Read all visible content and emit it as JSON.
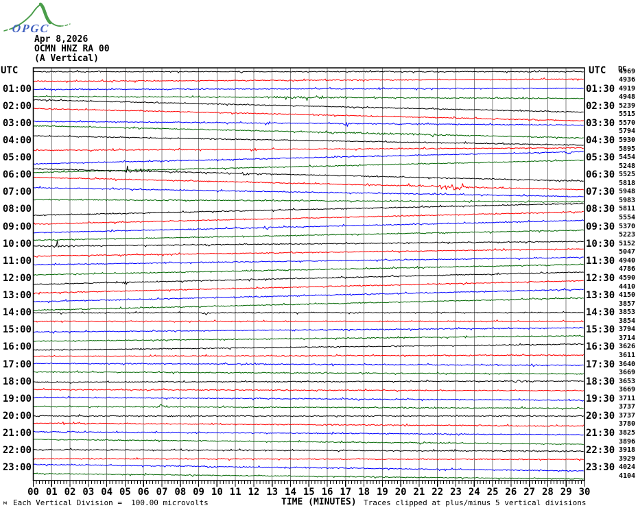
{
  "logo": {
    "text": "OPGC",
    "curve_color": "#4a9d4a",
    "text_color": "#4060c0"
  },
  "header": {
    "date": "Apr 8,2026",
    "station": "OCMN HNZ RA 00",
    "component": "(A Vertical)",
    "utc_left": "UTC",
    "utc_right": "UTC",
    "dc_header": "DC"
  },
  "footer": {
    "division_text": "Each Vertical Division =  100.00 microvolts",
    "time_axis_label": "TIME (MINUTES)",
    "clip_text": "Traces clipped at plus/minus 5 vertical divisions",
    "corner_mark": "м"
  },
  "chart_data": {
    "type": "line",
    "subtype": "helicorder-webicorder",
    "xlabel": "TIME (MINUTES)",
    "x_range": [
      0,
      30
    ],
    "minutes_per_line": 30,
    "lines_total": 48,
    "microvolts_per_division": 100.0,
    "clip_divisions": 5,
    "grid": "vertical minute lines on",
    "grid_color": "#808080",
    "trace_colors_cycle": [
      "#000000",
      "#ff0000",
      "#0000ff",
      "#006600"
    ],
    "noise_seed": 7,
    "minute_labels": [
      "00",
      "01",
      "02",
      "03",
      "04",
      "05",
      "06",
      "07",
      "08",
      "09",
      "10",
      "11",
      "12",
      "13",
      "14",
      "15",
      "16",
      "17",
      "18",
      "19",
      "20",
      "21",
      "22",
      "23",
      "24",
      "25",
      "26",
      "27",
      "28",
      "29",
      "30"
    ],
    "left_time_labels": [
      "01:00",
      "02:00",
      "03:00",
      "04:00",
      "05:00",
      "06:00",
      "07:00",
      "08:00",
      "09:00",
      "10:00",
      "11:00",
      "12:00",
      "13:00",
      "14:00",
      "15:00",
      "16:00",
      "17:00",
      "18:00",
      "19:00",
      "20:00",
      "21:00",
      "22:00",
      "23:00"
    ],
    "right_time_labels": [
      "01:30",
      "02:30",
      "03:30",
      "04:30",
      "05:30",
      "06:30",
      "07:30",
      "08:30",
      "09:30",
      "10:30",
      "11:30",
      "12:30",
      "13:30",
      "14:30",
      "15:30",
      "16:30",
      "17:30",
      "18:30",
      "19:30",
      "20:30",
      "21:30",
      "22:30",
      "23:30"
    ],
    "dc_values": [
      4969,
      4936,
      4919,
      4948,
      5239,
      5515,
      5570,
      5794,
      5930,
      5895,
      5454,
      5248,
      5525,
      5818,
      5948,
      5983,
      5811,
      5554,
      5370,
      5223,
      5152,
      5047,
      4940,
      4786,
      4590,
      4410,
      4150,
      3857,
      3853,
      3854,
      3794,
      3714,
      3626,
      3611,
      3640,
      3669,
      3653,
      3669,
      3711,
      3737,
      3737,
      3780,
      3825,
      3896,
      3918,
      3929,
      4024,
      4104
    ],
    "events": [
      {
        "trace": 4,
        "from": 11.5,
        "to": 17.5,
        "amp": 1.8
      },
      {
        "trace": 7,
        "from": 12.5,
        "to": 13.0,
        "amp": 5
      },
      {
        "trace": 7,
        "from": 16.8,
        "to": 17.3,
        "amp": 6
      },
      {
        "trace": 8,
        "from": 13.5,
        "to": 24.5,
        "amp": 1.6
      },
      {
        "trace": 10,
        "from": 11.7,
        "to": 12.3,
        "amp": 4
      },
      {
        "trace": 11,
        "from": 28.8,
        "to": 29.4,
        "amp": 5
      },
      {
        "trace": 13,
        "from": 4.6,
        "to": 6.4,
        "amp": 3
      },
      {
        "trace": 13,
        "from": 11.2,
        "to": 11.8,
        "amp": 3.5
      },
      {
        "trace": 14,
        "from": 19.5,
        "to": 25.5,
        "amp": 2.2
      },
      {
        "trace": 14,
        "from": 22.7,
        "to": 23.4,
        "amp": 5.5
      },
      {
        "trace": 19,
        "from": 12.3,
        "to": 12.9,
        "amp": 4.5
      },
      {
        "trace": 21,
        "from": 0.2,
        "to": 2.2,
        "amp": 2.5
      },
      {
        "trace": 25,
        "from": 4.8,
        "to": 5.3,
        "amp": 4
      },
      {
        "trace": 29,
        "from": 9.1,
        "to": 9.7,
        "amp": 5.5
      },
      {
        "trace": 37,
        "from": 26.1,
        "to": 26.7,
        "amp": 4
      },
      {
        "trace": 40,
        "from": 6.7,
        "to": 7.2,
        "amp": -6
      },
      {
        "trace": 47,
        "from": 13.0,
        "to": 14.2,
        "amp": 3
      }
    ]
  }
}
